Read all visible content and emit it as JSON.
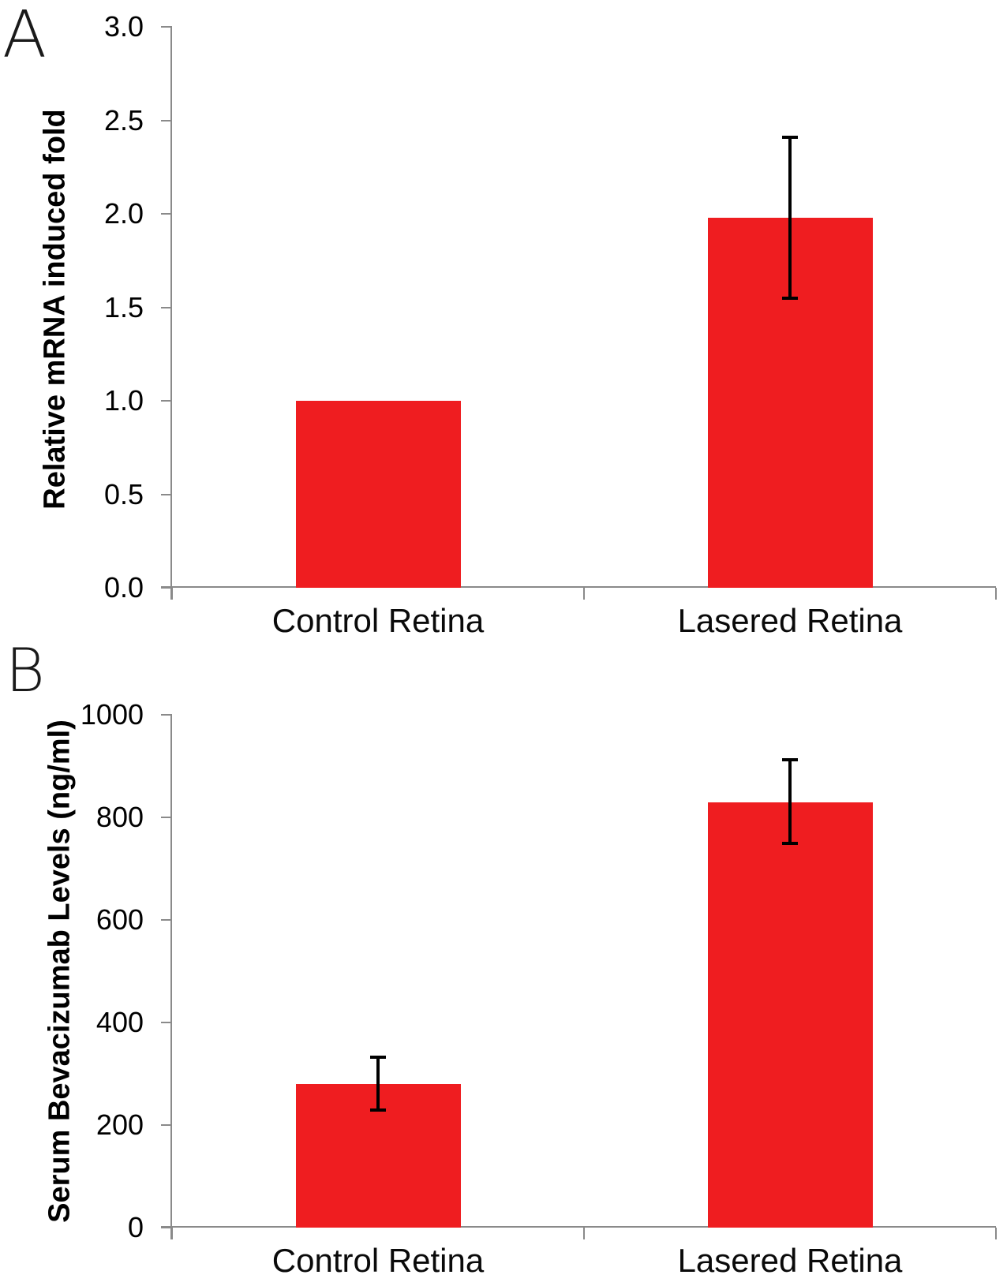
{
  "panels": [
    {
      "letter": "A"
    },
    {
      "letter": "B"
    }
  ],
  "colors": {
    "bar": "#ef1d20",
    "axis": "#8a8a8a",
    "error_bar": "#000000",
    "text": "#000000",
    "background": "#ffffff"
  },
  "chart_data": [
    {
      "panel": "A",
      "type": "bar",
      "title": "",
      "xlabel": "",
      "ylabel": "Relative mRNA induced fold",
      "categories": [
        "Control Retina",
        "Lasered Retina"
      ],
      "values": [
        1.0,
        1.98
      ],
      "error_low": [
        null,
        1.55
      ],
      "error_high": [
        null,
        2.41
      ],
      "ylim": [
        0,
        3
      ],
      "ytick_values": [
        0,
        0.5,
        1,
        1.5,
        2,
        2.5,
        3
      ],
      "ytick_labels": [
        "0.0",
        "0.5",
        "1.0",
        "1.5",
        "2.0",
        "2.5",
        "3.0"
      ],
      "grid": false,
      "legend": "none",
      "bar_color": "#ef1d20"
    },
    {
      "panel": "B",
      "type": "bar",
      "title": "",
      "xlabel": "",
      "ylabel": "Serum Bevacizumab Levels (ng/ml)",
      "categories": [
        "Control Retina",
        "Lasered Retina"
      ],
      "values": [
        280,
        830
      ],
      "error_low": [
        230,
        750
      ],
      "error_high": [
        333,
        912
      ],
      "ylim": [
        0,
        1000
      ],
      "ytick_values": [
        0,
        200,
        400,
        600,
        800,
        1000
      ],
      "ytick_labels": [
        "0",
        "200",
        "400",
        "600",
        "800",
        "1000"
      ],
      "grid": false,
      "legend": "none",
      "bar_color": "#ef1d20"
    }
  ]
}
